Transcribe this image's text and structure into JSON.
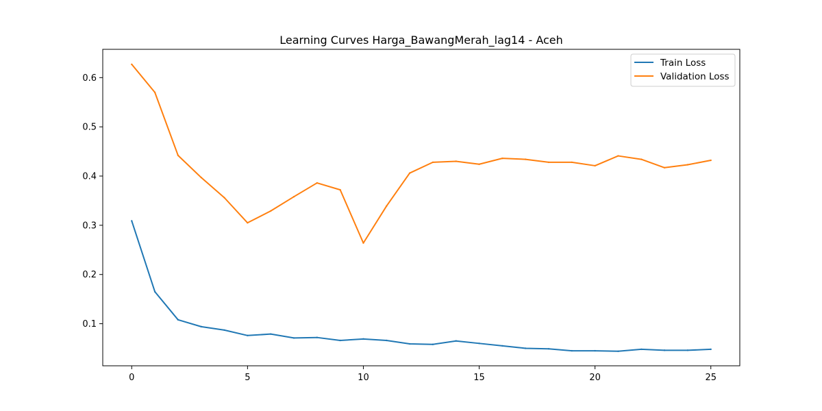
{
  "chart_data": {
    "type": "line",
    "title": "Learning Curves Harga_BawangMerah_lag14 - Aceh",
    "xlabel": "",
    "ylabel": "",
    "xlim": [
      -1.25,
      26.25
    ],
    "ylim": [
      0.0145,
      0.6575
    ],
    "xticks": [
      0,
      5,
      10,
      15,
      20,
      25
    ],
    "yticks": [
      0.1,
      0.2,
      0.3,
      0.4,
      0.5,
      0.6
    ],
    "ytick_labels": [
      "0.1",
      "0.2",
      "0.3",
      "0.4",
      "0.5",
      "0.6"
    ],
    "grid": false,
    "legend_position": "top-right",
    "x": [
      0,
      1,
      2,
      3,
      4,
      5,
      6,
      7,
      8,
      9,
      10,
      11,
      12,
      13,
      14,
      15,
      16,
      17,
      18,
      19,
      20,
      21,
      22,
      23,
      24,
      25
    ],
    "series": [
      {
        "name": "Train Loss",
        "color": "#1f77b4",
        "values": [
          0.309,
          0.165,
          0.108,
          0.094,
          0.087,
          0.076,
          0.079,
          0.071,
          0.072,
          0.066,
          0.069,
          0.066,
          0.059,
          0.058,
          0.065,
          0.06,
          0.055,
          0.05,
          0.049,
          0.045,
          0.045,
          0.044,
          0.048,
          0.046,
          0.046,
          0.048
        ]
      },
      {
        "name": "Validation Loss",
        "color": "#ff7f0e",
        "values": [
          0.627,
          0.57,
          0.442,
          0.397,
          0.356,
          0.305,
          0.329,
          0.358,
          0.386,
          0.372,
          0.264,
          0.339,
          0.406,
          0.428,
          0.43,
          0.424,
          0.436,
          0.434,
          0.428,
          0.428,
          0.421,
          0.441,
          0.434,
          0.417,
          0.423,
          0.432
        ]
      }
    ]
  }
}
